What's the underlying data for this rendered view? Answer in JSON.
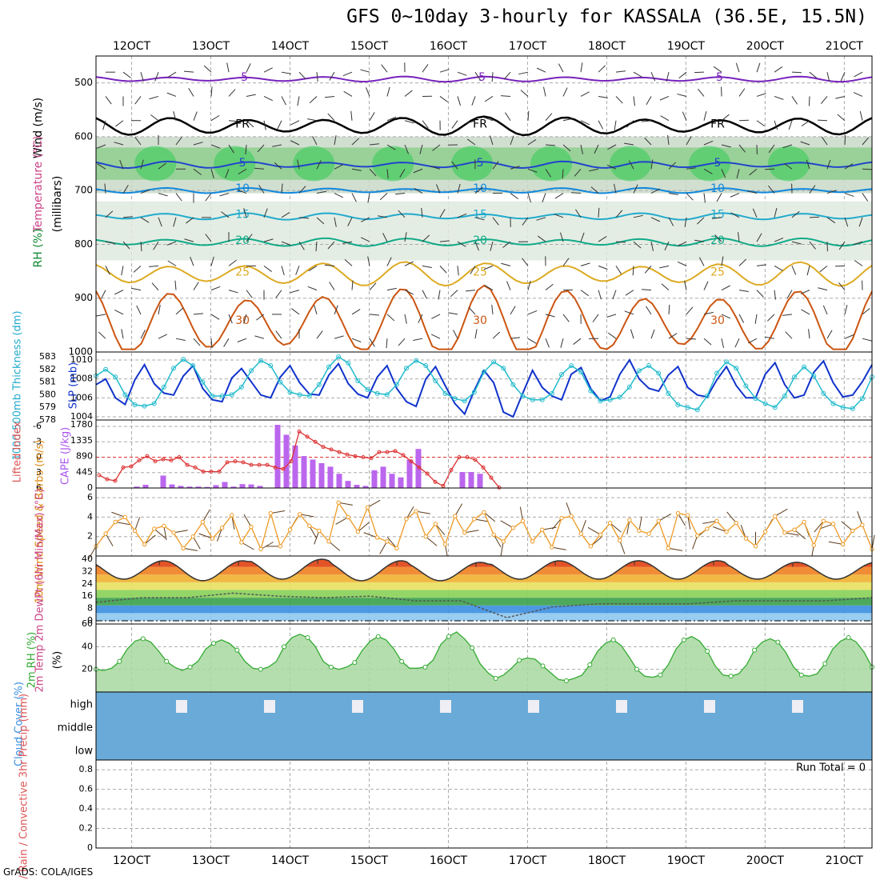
{
  "title": "GFS 0~10day 3-hourly for KASSALA (36.5E, 15.5N)",
  "credit": "GrADS: COLA/IGES",
  "chart_data": {
    "type": "meteogram",
    "colors": {
      "grid": "#aaaaaa",
      "barbs": "#333333",
      "rh_green": "#33cc55",
      "slp": "#1133cc",
      "thick": "#22bbcc",
      "lifted": "#dd3333",
      "cape": "#bb66ee",
      "wind": "#ee9922",
      "cloud": "#6aaad8",
      "rh2m": "#33aa33"
    },
    "dates": [
      "12OCT",
      "13OCT",
      "14OCT",
      "15OCT",
      "16OCT",
      "17OCT",
      "18OCT",
      "19OCT",
      "20OCT",
      "21OCT"
    ],
    "xrange": [
      -0.45,
      9.35
    ],
    "panels": {
      "upper": {
        "ylabel": "(millibars)",
        "side_labels": [
          "Wind (m/s)",
          "Temperature (°C)",
          "RH (%)"
        ],
        "levels": [
          500,
          600,
          700,
          800,
          900,
          1000
        ],
        "contours": [
          {
            "value": -5,
            "label": "-5",
            "color": "#7722bb",
            "mean": 493,
            "amp": 4
          },
          {
            "value": 0,
            "label": "FR",
            "color": "#000000",
            "mean": 580,
            "amp": 14
          },
          {
            "value": 5,
            "label": "5",
            "color": "#2244cc",
            "mean": 652,
            "amp": 5
          },
          {
            "value": 10,
            "label": "10",
            "color": "#1188dd",
            "mean": 700,
            "amp": 4
          },
          {
            "value": 15,
            "label": "15",
            "color": "#22aacc",
            "mean": 748,
            "amp": 5
          },
          {
            "value": 20,
            "label": "20",
            "color": "#11aa88",
            "mean": 796,
            "amp": 6
          },
          {
            "value": 25,
            "label": "25",
            "color": "#ddaa22",
            "mean": 855,
            "amp": 18
          },
          {
            "value": 30,
            "label": "30",
            "color": "#cc5511",
            "mean": 945,
            "amp": 55
          }
        ]
      },
      "slp": {
        "left_label": "1000-500mb Thickness (dm)",
        "right_label": "SLP (mb)",
        "thick_ticks": [
          578,
          579,
          580,
          581,
          582,
          583
        ],
        "slp_ticks": [
          1004,
          1006,
          1008,
          1010
        ],
        "slp": [
          1007.4,
          1008.0,
          1006.0,
          1005.3,
          1007.9,
          1009.5,
          1007.5,
          1006.5,
          1006.3,
          1008.3,
          1009.4,
          1007.0,
          1005.8,
          1005.6,
          1008.1,
          1009.1,
          1007.7,
          1006.3,
          1006.0,
          1008.2,
          1009.4,
          1007.6,
          1006.4,
          1006.3,
          1008.4,
          1009.6,
          1007.5,
          1006.4,
          1006.0,
          1008.2,
          1009.4,
          1007.0,
          1005.6,
          1005.1,
          1008.0,
          1009.3,
          1007.3,
          1005.4,
          1004.3,
          1006.8,
          1008.9,
          1007.6,
          1004.5,
          1004.0,
          1006.5,
          1008.9,
          1007.1,
          1006.2,
          1005.8,
          1008.5,
          1009.2,
          1007.0,
          1005.7,
          1006.1,
          1008.5,
          1010.0,
          1008.0,
          1007.0,
          1006.7,
          1008.4,
          1009.3,
          1007.1,
          1006.3,
          1006.1,
          1007.9,
          1009.3,
          1007.3,
          1006.0,
          1006.0,
          1008.5,
          1009.7,
          1007.4,
          1006.0,
          1006.3,
          1008.7,
          1009.9,
          1007.6,
          1006.1,
          1006.3,
          1007.7,
          1009.5
        ],
        "thickness": [
          581.5,
          582.0,
          581.4,
          580.0,
          579.2,
          579.1,
          579.3,
          580.6,
          582.1,
          582.8,
          582.3,
          581.0,
          579.9,
          579.9,
          580.0,
          580.6,
          581.9,
          582.7,
          582.3,
          581.0,
          580.2,
          580.0,
          579.9,
          580.8,
          582.2,
          583.0,
          582.5,
          581.1,
          580.4,
          580.1,
          580.0,
          580.8,
          582.1,
          582.7,
          582.3,
          581.1,
          580.1,
          579.7,
          579.5,
          580.2,
          581.8,
          582.6,
          582.1,
          580.8,
          579.9,
          579.6,
          579.6,
          580.1,
          581.6,
          582.3,
          581.8,
          580.3,
          579.5,
          579.6,
          579.8,
          580.6,
          581.9,
          582.3,
          581.7,
          580.1,
          579.2,
          579.0,
          578.8,
          579.9,
          581.7,
          582.6,
          582.1,
          580.7,
          579.7,
          579.3,
          579.0,
          579.9,
          581.4,
          582.2,
          581.5,
          580.1,
          579.3,
          579.0,
          578.9,
          579.7,
          581.4
        ]
      },
      "cape": {
        "left_label": "Lifted Index",
        "right_label": "CAPE (J/kg)",
        "li_ticks": [
          -6,
          -3,
          0,
          3,
          6
        ],
        "cape_ticks": [
          0,
          445,
          890,
          1335,
          1780
        ],
        "lifted_index": [
          3.5,
          4.3,
          4.6,
          2.0,
          1.8,
          0.6,
          -0.2,
          0.8,
          0.4,
          0.6,
          0.0,
          1.5,
          2.0,
          2.8,
          2.8,
          2.8,
          1.0,
          0.8,
          1.0,
          1.5,
          1.5,
          1.5,
          2.0,
          2.3,
          0.8,
          -5.0,
          -4.0,
          -3.0,
          -2.0,
          -1.5,
          -1.0,
          -0.5,
          -0.2,
          0.0,
          0.2,
          -1.0,
          -1.0,
          -1.2,
          -0.4,
          0.8,
          2.0,
          3.2,
          4.8,
          5.6,
          2.5,
          0.0,
          0.0,
          0.5,
          2.0,
          4.0,
          5.9
        ],
        "cape": [
          0,
          40,
          90,
          0,
          350,
          100,
          60,
          40,
          40,
          30,
          80,
          170,
          40,
          110,
          100,
          60,
          0,
          1780,
          1500,
          1200,
          900,
          800,
          700,
          600,
          400,
          200,
          90,
          60,
          500,
          600,
          400,
          300,
          800,
          1100,
          0,
          0,
          0,
          0,
          450,
          450,
          400,
          0
        ]
      },
      "wind10m": {
        "left_label": "10m Wind Speed & Barbs (m/s)",
        "ticks": [
          0,
          2,
          4,
          6
        ],
        "speed": [
          1.0,
          2.3,
          3.5,
          4.0,
          2.6,
          1.2,
          2.8,
          3.1,
          2.4,
          0.8,
          2.0,
          3.5,
          1.8,
          2.9,
          4.2,
          1.4,
          3.0,
          0.7,
          4.4,
          1.0,
          2.7,
          4.3,
          3.1,
          2.6,
          1.5,
          5.5,
          4.0,
          2.5,
          5.0,
          1.9,
          1.5,
          0.8,
          3.8,
          4.6,
          2.0,
          3.3,
          1.2,
          4.1,
          2.4,
          3.8,
          4.5,
          2.2,
          1.5,
          2.9,
          3.6,
          1.5,
          2.7,
          0.9,
          3.9,
          4.1,
          2.3,
          1.0,
          2.2,
          3.4,
          1.6,
          3.7,
          2.6,
          2.3,
          3.6,
          0.8,
          4.4,
          4.2,
          2.1,
          2.8,
          3.6,
          2.5,
          3.4,
          1.8,
          1.0,
          2.5,
          4.1,
          2.4,
          2.7,
          3.5,
          1.1,
          3.6,
          3.3,
          1.2,
          2.6,
          3.2,
          0.7
        ],
        "dirs": [
          120,
          60,
          10,
          200,
          290,
          320,
          40,
          80,
          350,
          10,
          60,
          300,
          200,
          110,
          80,
          30,
          240,
          330,
          350,
          180,
          300,
          10,
          60,
          110,
          40,
          10,
          150,
          320,
          330,
          200,
          120,
          230,
          300,
          10,
          40,
          50,
          80,
          300,
          350,
          10,
          40,
          60,
          100,
          210,
          260,
          310,
          350,
          10,
          130,
          250,
          290,
          320,
          210,
          40,
          70,
          100,
          280,
          310,
          330,
          10,
          60,
          80,
          110,
          140,
          170,
          200,
          230,
          250,
          270,
          300,
          330,
          10,
          40,
          70,
          100,
          130,
          160,
          190,
          220,
          250,
          280
        ]
      },
      "temp2m": {
        "left_label": "2m Temp 2m DewPt (6hr Min/Max) (°C)",
        "ticks": [
          0,
          8,
          16,
          24,
          32,
          40
        ],
        "tmax": [
          39,
          39,
          40,
          39,
          38,
          39,
          39,
          39,
          38,
          38
        ],
        "tmin": [
          27,
          26,
          27,
          26,
          26,
          27,
          27,
          27,
          27,
          27
        ],
        "dewpt": [
          12,
          15,
          15,
          18,
          16,
          15,
          16,
          13,
          13,
          2,
          9,
          11,
          11,
          11,
          13,
          13,
          13,
          15
        ]
      },
      "rh2m": {
        "left_label": "2m RH (%)",
        "ticks": [
          20,
          40,
          60
        ],
        "values": [
          20,
          19,
          21,
          27,
          38,
          45,
          47,
          44,
          36,
          27,
          22,
          19,
          22,
          27,
          38,
          43,
          46,
          43,
          37,
          27,
          21,
          20,
          22,
          27,
          40,
          48,
          51,
          48,
          40,
          27,
          22,
          20,
          22,
          26,
          37,
          45,
          49,
          46,
          38,
          27,
          21,
          21,
          22,
          28,
          42,
          49,
          53,
          47,
          39,
          25,
          17,
          12,
          15,
          21,
          28,
          30,
          29,
          23,
          17,
          11,
          10,
          12,
          15,
          24,
          36,
          43,
          46,
          41,
          31,
          20,
          14,
          13,
          15,
          24,
          38,
          46,
          49,
          45,
          36,
          23,
          15,
          14,
          16,
          24,
          37,
          44,
          47,
          44,
          35,
          22,
          15,
          14,
          16,
          25,
          38,
          45,
          48,
          44,
          35,
          22
        ]
      },
      "cloud": {
        "left_label": "Cloud Cover (%)",
        "rows": [
          "high",
          "middle",
          "low"
        ]
      },
      "precip": {
        "left_label": "Total / Rain / Convective 3hr Precip (mm)",
        "ticks": [
          "0",
          "0.2",
          "0.4",
          "0.6",
          "0.8"
        ],
        "run_total": "Run Total = 0"
      }
    }
  }
}
